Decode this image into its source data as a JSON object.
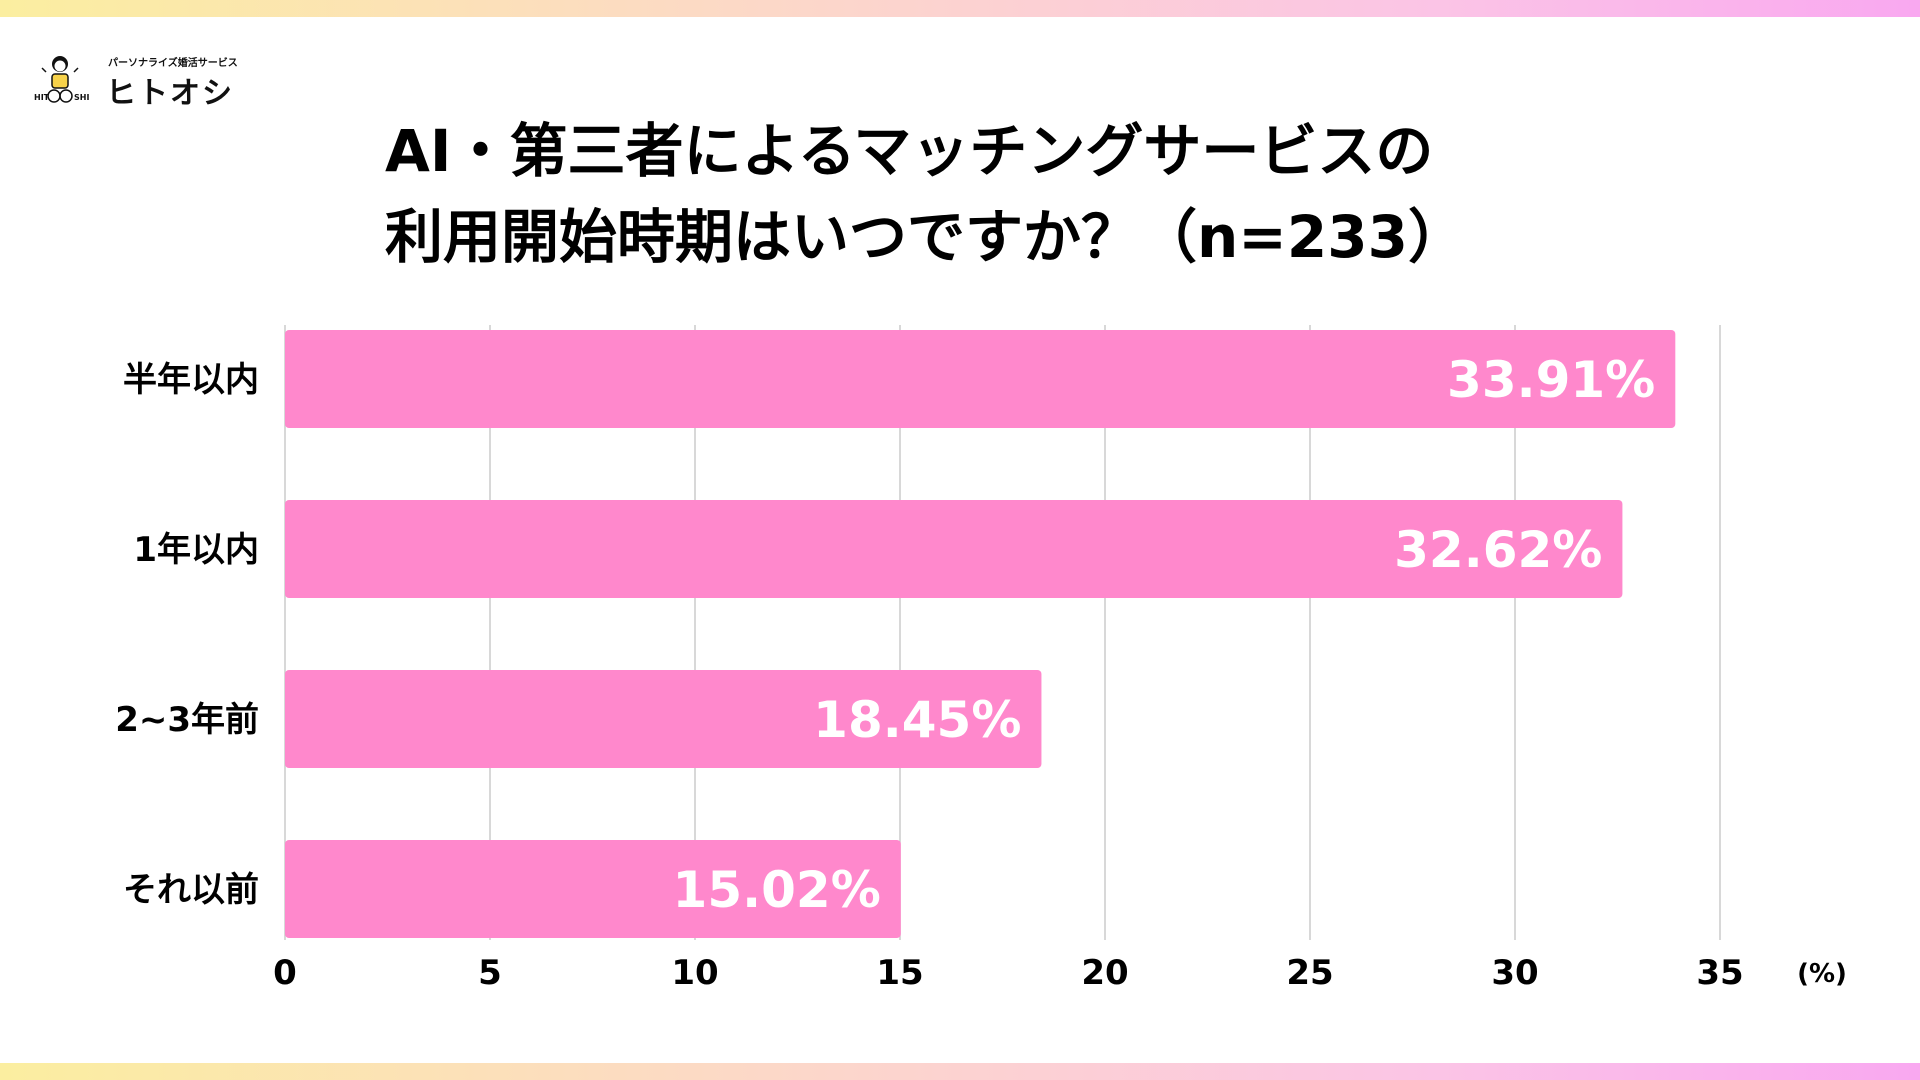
{
  "logo": {
    "tagline": "パーソナライズ婚活サービス",
    "name": "ヒトオシ",
    "mark_text": "HITOOSHI"
  },
  "title": {
    "line1": "AI・第三者によるマッチングサービスの",
    "line2": "利用開始時期はいつですか？（n=233）"
  },
  "chart_data": {
    "type": "bar",
    "orientation": "horizontal",
    "categories": [
      "半年以内",
      "1年以内",
      "2~3年前",
      "それ以前"
    ],
    "values": [
      33.91,
      32.62,
      18.45,
      15.02
    ],
    "value_labels": [
      "33.91%",
      "32.62%",
      "18.45%",
      "15.02%"
    ],
    "xlim": [
      0,
      35
    ],
    "xticks": [
      0,
      5,
      10,
      15,
      20,
      25,
      30,
      35
    ],
    "x_unit": "(%)",
    "grid": true,
    "bar_color": "#ff88cc",
    "grid_color": "#cccccc"
  },
  "colors": {
    "stripe_start": "#fbeea0",
    "stripe_end": "#f9a8f0"
  }
}
